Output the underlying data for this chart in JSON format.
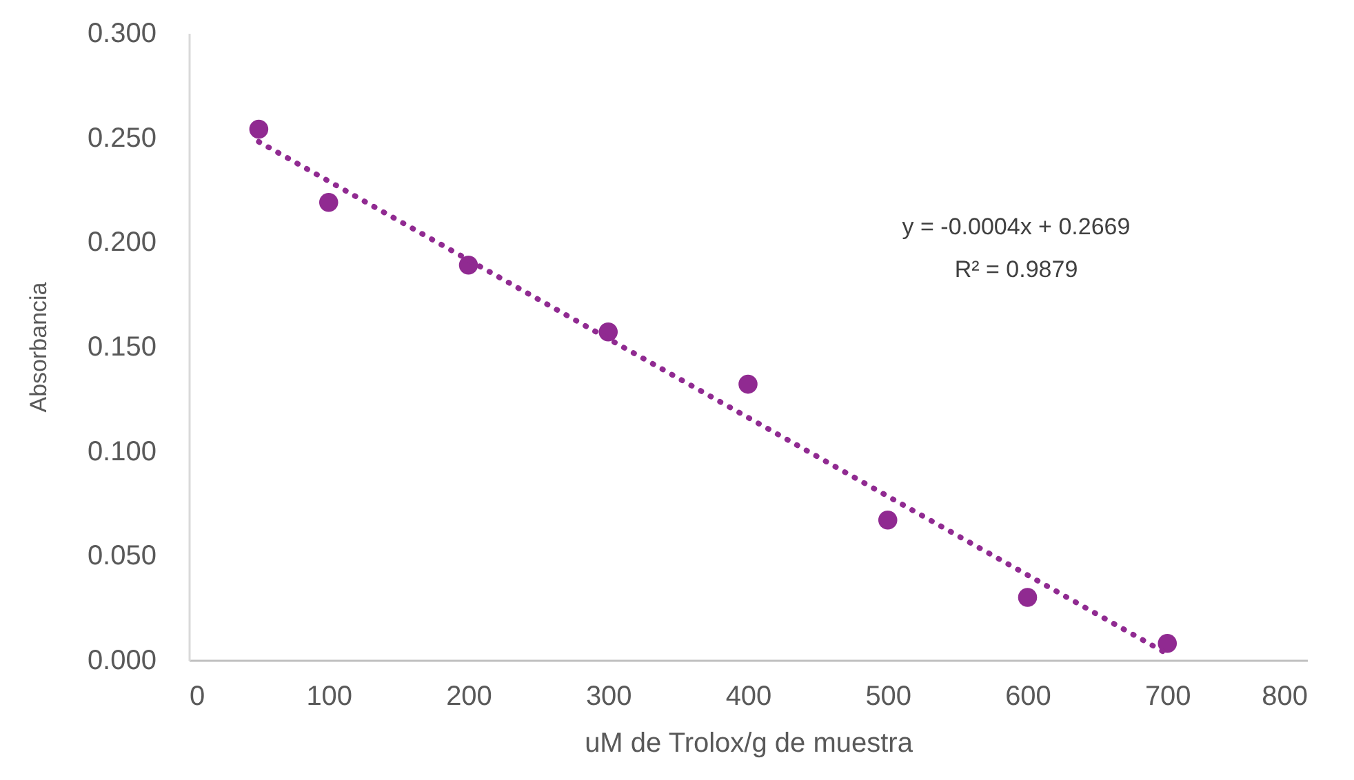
{
  "chart_data": {
    "type": "scatter",
    "xlabel": "uM de Trolox/g de muestra",
    "ylabel": "Absorbancia",
    "annotations": [
      "y = -0.0004x + 0.2669",
      "R² = 0.9879"
    ],
    "x": [
      50,
      100,
      200,
      300,
      400,
      500,
      600,
      700
    ],
    "series": [
      {
        "color": "#902a91",
        "marker": "circle",
        "values": [
          0.254,
          0.219,
          0.189,
          0.157,
          0.132,
          0.067,
          0.03,
          0.008
        ]
      },
      {
        "type": "line",
        "x": [
          50,
          700
        ],
        "values": [
          0.248,
          0.003
        ],
        "color": "#902a91",
        "line_style": "dotted",
        "marker": "none"
      }
    ],
    "xlim": [
      0,
      800
    ],
    "xticks": [
      0,
      100,
      200,
      300,
      400,
      500,
      600,
      700,
      800
    ],
    "ylim": [
      0,
      0.3
    ],
    "yticks": [
      {
        "value": 0,
        "label": "0.000"
      },
      {
        "value": 0.05,
        "label": "0.050"
      },
      {
        "value": 0.1,
        "label": "0.100"
      },
      {
        "value": 0.15,
        "label": "0.150"
      },
      {
        "value": 0.2,
        "label": "0.200"
      },
      {
        "value": 0.25,
        "label": "0.250"
      },
      {
        "value": 0.3,
        "label": "0.300"
      }
    ],
    "grid": false
  }
}
